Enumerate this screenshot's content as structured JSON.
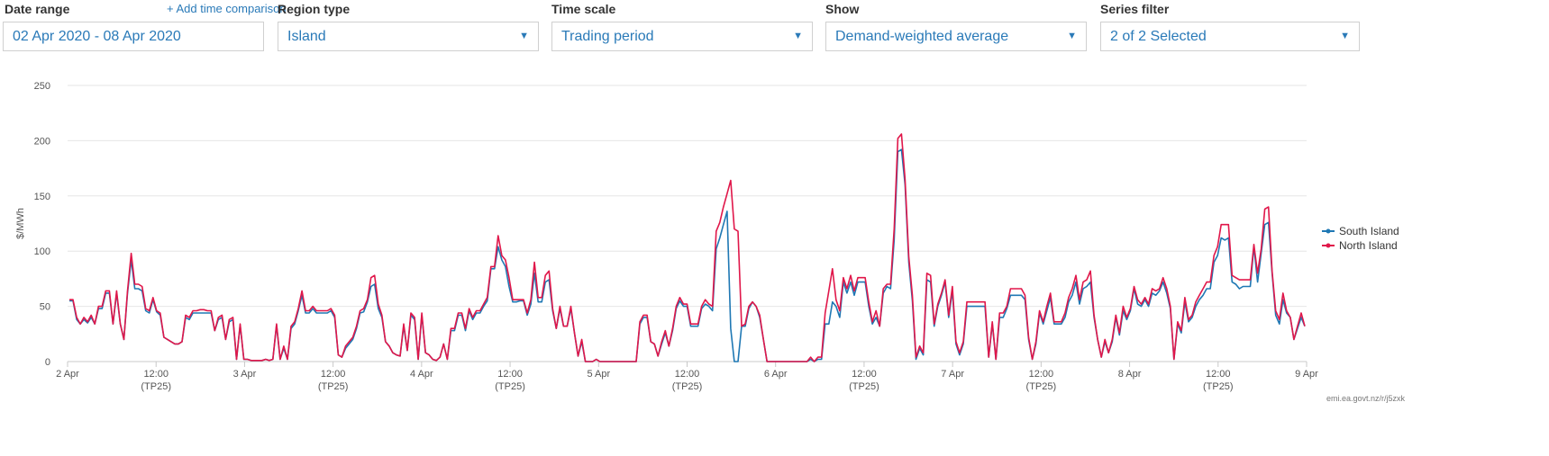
{
  "filters": {
    "date_range": {
      "label": "Date range",
      "value": "02 Apr 2020 - 08 Apr 2020",
      "add_comparison": "+ Add time comparison"
    },
    "region_type": {
      "label": "Region type",
      "value": "Island"
    },
    "time_scale": {
      "label": "Time scale",
      "value": "Trading period"
    },
    "show": {
      "label": "Show",
      "value": "Demand-weighted average"
    },
    "series_filter": {
      "label": "Series filter",
      "value": "2 of 2 Selected"
    },
    "caret_glyph": "▼",
    "accent_color": "#2a7ab8"
  },
  "chart_data": {
    "type": "line",
    "title": "",
    "xlabel": "",
    "ylabel": "$/MWh",
    "ylim": [
      0,
      250
    ],
    "yticks": [
      0,
      50,
      100,
      150,
      200,
      250
    ],
    "grid": "horizontal",
    "legend_position": "right",
    "xlim": [
      "02 Apr 2020 00:00",
      "09 Apr 2020 00:00"
    ],
    "x_interval": "trading period (30 min)",
    "x_ticks": [
      {
        "hours": 0,
        "label": "2 Apr",
        "sub": ""
      },
      {
        "hours": 12,
        "label": "12:00",
        "sub": "(TP25)"
      },
      {
        "hours": 24,
        "label": "3 Apr",
        "sub": ""
      },
      {
        "hours": 36,
        "label": "12:00",
        "sub": "(TP25)"
      },
      {
        "hours": 48,
        "label": "4 Apr",
        "sub": ""
      },
      {
        "hours": 60,
        "label": "12:00",
        "sub": "(TP25)"
      },
      {
        "hours": 72,
        "label": "5 Apr",
        "sub": ""
      },
      {
        "hours": 84,
        "label": "12:00",
        "sub": "(TP25)"
      },
      {
        "hours": 96,
        "label": "6 Apr",
        "sub": ""
      },
      {
        "hours": 108,
        "label": "12:00",
        "sub": "(TP25)"
      },
      {
        "hours": 120,
        "label": "7 Apr",
        "sub": ""
      },
      {
        "hours": 132,
        "label": "12:00",
        "sub": "(TP25)"
      },
      {
        "hours": 144,
        "label": "8 Apr",
        "sub": ""
      },
      {
        "hours": 156,
        "label": "12:00",
        "sub": "(TP25)"
      },
      {
        "hours": 168,
        "label": "9 Apr",
        "sub": ""
      }
    ],
    "series": [
      {
        "name": "South Island",
        "color": "#1f78b4",
        "values": [
          55,
          55,
          38,
          34,
          38,
          35,
          40,
          34,
          48,
          48,
          62,
          62,
          34,
          62,
          34,
          20,
          62,
          92,
          66,
          66,
          64,
          46,
          44,
          56,
          45,
          42,
          22,
          20,
          18,
          16,
          16,
          18,
          40,
          38,
          44,
          44,
          44,
          44,
          44,
          44,
          28,
          38,
          40,
          20,
          36,
          38,
          2,
          33,
          2,
          2,
          1,
          1,
          1,
          1,
          2,
          1,
          2,
          33,
          2,
          12,
          2,
          30,
          34,
          46,
          60,
          44,
          44,
          48,
          44,
          44,
          44,
          44,
          46,
          40,
          6,
          4,
          12,
          16,
          20,
          30,
          44,
          45,
          54,
          68,
          70,
          48,
          40,
          18,
          14,
          8,
          6,
          5,
          32,
          10,
          42,
          38,
          2,
          42,
          8,
          6,
          2,
          1,
          4,
          16,
          2,
          28,
          28,
          42,
          42,
          28,
          46,
          38,
          44,
          44,
          50,
          55,
          84,
          84,
          104,
          92,
          86,
          68,
          54,
          54,
          55,
          55,
          42,
          52,
          80,
          54,
          54,
          72,
          74,
          46,
          30,
          48,
          32,
          32,
          48,
          26,
          5,
          18,
          0,
          0,
          0,
          2,
          0,
          0,
          0,
          0,
          0,
          0,
          0,
          0,
          0,
          0,
          0,
          34,
          40,
          40,
          18,
          16,
          5,
          16,
          26,
          14,
          28,
          48,
          55,
          50,
          50,
          32,
          32,
          32,
          48,
          52,
          50,
          46,
          102,
          112,
          124,
          136,
          30,
          0,
          0,
          32,
          32,
          48,
          54,
          50,
          40,
          20,
          0,
          0,
          0,
          0,
          0,
          0,
          0,
          0,
          0,
          0,
          0,
          0,
          2,
          0,
          2,
          2,
          34,
          34,
          54,
          50,
          40,
          72,
          62,
          72,
          60,
          72,
          72,
          72,
          50,
          34,
          40,
          32,
          62,
          68,
          66,
          110,
          190,
          192,
          160,
          90,
          55,
          2,
          12,
          6,
          74,
          72,
          32,
          50,
          60,
          72,
          40,
          64,
          16,
          6,
          16,
          50,
          50,
          50,
          50,
          50,
          50,
          4,
          34,
          2,
          40,
          40,
          48,
          60,
          60,
          60,
          60,
          56,
          20,
          2,
          16,
          44,
          34,
          46,
          58,
          34,
          34,
          34,
          40,
          54,
          60,
          72,
          52,
          66,
          68,
          72,
          40,
          20,
          4,
          18,
          8,
          18,
          40,
          24,
          46,
          38,
          46,
          66,
          52,
          50,
          56,
          50,
          62,
          60,
          64,
          72,
          62,
          48,
          2,
          34,
          26,
          54,
          36,
          40,
          50,
          56,
          60,
          66,
          66,
          90,
          96,
          112,
          110,
          112,
          72,
          70,
          66,
          68,
          68,
          68,
          104,
          72,
          98,
          124,
          126,
          80,
          42,
          34,
          56,
          44,
          40,
          20,
          30,
          40,
          32
        ]
      },
      {
        "name": "North Island",
        "color": "#e0174a",
        "values": [
          56,
          56,
          40,
          34,
          40,
          36,
          42,
          34,
          50,
          50,
          64,
          64,
          34,
          64,
          34,
          20,
          64,
          98,
          70,
          70,
          68,
          48,
          46,
          58,
          46,
          44,
          22,
          20,
          18,
          16,
          16,
          18,
          42,
          40,
          46,
          46,
          47,
          47,
          46,
          46,
          28,
          40,
          42,
          20,
          38,
          40,
          2,
          34,
          2,
          2,
          1,
          1,
          1,
          1,
          2,
          1,
          2,
          34,
          2,
          14,
          2,
          32,
          36,
          48,
          64,
          46,
          46,
          50,
          46,
          46,
          46,
          46,
          48,
          42,
          6,
          4,
          14,
          18,
          22,
          32,
          46,
          48,
          56,
          76,
          78,
          52,
          42,
          18,
          14,
          8,
          6,
          5,
          34,
          10,
          44,
          40,
          2,
          44,
          8,
          6,
          2,
          1,
          4,
          16,
          2,
          30,
          30,
          44,
          44,
          30,
          48,
          40,
          46,
          46,
          52,
          58,
          86,
          86,
          114,
          96,
          92,
          76,
          56,
          56,
          56,
          56,
          44,
          56,
          90,
          58,
          58,
          78,
          82,
          48,
          30,
          50,
          32,
          32,
          50,
          26,
          5,
          20,
          0,
          0,
          0,
          2,
          0,
          0,
          0,
          0,
          0,
          0,
          0,
          0,
          0,
          0,
          0,
          36,
          42,
          42,
          18,
          16,
          5,
          18,
          28,
          14,
          30,
          50,
          58,
          52,
          52,
          34,
          34,
          34,
          50,
          56,
          52,
          50,
          118,
          126,
          140,
          152,
          164,
          120,
          118,
          32,
          34,
          50,
          54,
          50,
          42,
          20,
          0,
          0,
          0,
          0,
          0,
          0,
          0,
          0,
          0,
          0,
          0,
          0,
          4,
          0,
          4,
          4,
          44,
          64,
          84,
          56,
          46,
          76,
          66,
          78,
          64,
          76,
          76,
          76,
          54,
          36,
          46,
          32,
          66,
          70,
          70,
          120,
          202,
          206,
          165,
          95,
          60,
          4,
          14,
          8,
          80,
          78,
          34,
          52,
          62,
          74,
          42,
          68,
          18,
          8,
          18,
          54,
          54,
          54,
          54,
          54,
          54,
          4,
          36,
          2,
          44,
          44,
          50,
          66,
          66,
          66,
          66,
          60,
          22,
          2,
          18,
          46,
          36,
          50,
          62,
          36,
          36,
          36,
          44,
          58,
          66,
          78,
          56,
          72,
          74,
          82,
          42,
          20,
          4,
          20,
          8,
          20,
          42,
          26,
          50,
          40,
          48,
          68,
          56,
          52,
          58,
          52,
          66,
          64,
          66,
          76,
          66,
          50,
          2,
          36,
          28,
          58,
          38,
          42,
          54,
          60,
          66,
          72,
          72,
          96,
          104,
          124,
          124,
          124,
          78,
          76,
          74,
          74,
          74,
          74,
          106,
          80,
          102,
          138,
          140,
          82,
          46,
          38,
          62,
          46,
          40,
          20,
          32,
          44,
          32
        ]
      }
    ]
  },
  "credit": "emi.ea.govt.nz/r/j5zxk"
}
